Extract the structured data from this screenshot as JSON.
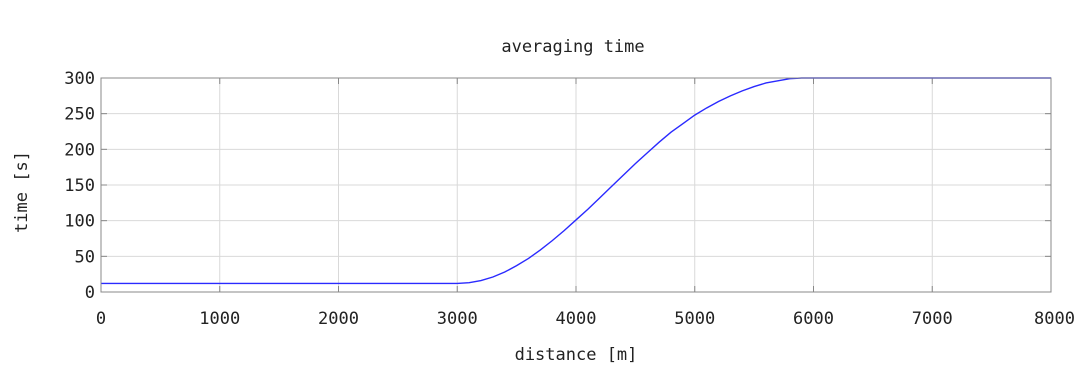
{
  "chart_data": {
    "type": "line",
    "title": "averaging time",
    "xlabel": "distance [m]",
    "ylabel": "time [s]",
    "xlim": [
      0,
      8000
    ],
    "ylim": [
      0,
      300
    ],
    "xticks": [
      0,
      1000,
      2000,
      3000,
      4000,
      5000,
      6000,
      7000,
      8000
    ],
    "yticks": [
      0,
      50,
      100,
      150,
      200,
      250,
      300
    ],
    "grid": true,
    "legend": "none",
    "series": [
      {
        "color": "#2a2aff",
        "x": [
          0,
          1000,
          2000,
          3000,
          3100,
          3200,
          3300,
          3400,
          3500,
          3600,
          3700,
          3800,
          3900,
          4000,
          4100,
          4200,
          4300,
          4400,
          4500,
          4600,
          4700,
          4800,
          4900,
          5000,
          5100,
          5200,
          5300,
          5400,
          5500,
          5600,
          5700,
          5800,
          5900,
          6000,
          7000,
          8000
        ],
        "y": [
          12,
          12,
          12,
          12,
          13,
          16,
          21,
          28,
          37,
          47,
          59,
          72,
          86,
          101,
          116,
          132,
          148,
          164,
          180,
          195,
          210,
          224,
          236,
          248,
          258,
          267,
          275,
          282,
          288,
          293,
          296,
          299,
          300,
          300,
          300,
          300
        ]
      }
    ]
  }
}
